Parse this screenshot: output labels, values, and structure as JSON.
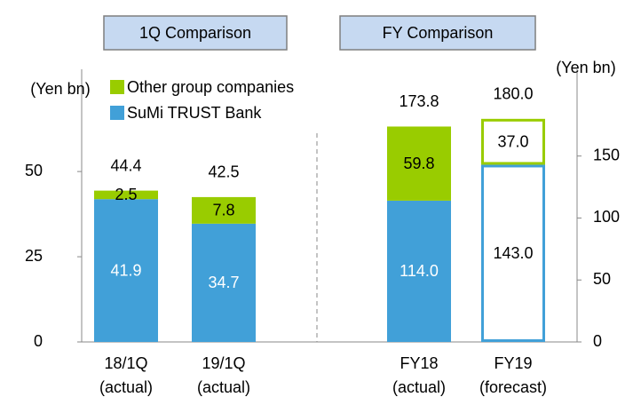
{
  "chart_data": [
    {
      "type": "stacked-bar",
      "title": "1Q Comparison",
      "ylabel": "(Yen bn)",
      "categories": [
        [
          "18/1Q",
          "(actual)"
        ],
        [
          "19/1Q",
          "(actual)"
        ]
      ],
      "series": [
        {
          "name": "SuMi TRUST Bank",
          "color": "#41a0d8",
          "values": [
            41.9,
            34.7
          ]
        },
        {
          "name": "Other group companies",
          "color": "#99cc00",
          "values": [
            2.5,
            7.8
          ]
        }
      ],
      "totals": [
        44.4,
        42.5
      ],
      "ylim": [
        0,
        80
      ],
      "yticks": [
        0,
        25,
        50
      ],
      "legend": true,
      "hollow": [
        false,
        false
      ]
    },
    {
      "type": "stacked-bar",
      "title": "FY Comparison",
      "ylabel": "(Yen bn)",
      "categories": [
        [
          "FY18",
          "(actual)"
        ],
        [
          "FY19",
          "(forecast)"
        ]
      ],
      "series": [
        {
          "color": "#41a0d8",
          "axis": "y2",
          "values": [
            114.0,
            143.0
          ],
          "value_labels": [
            "114.0",
            "143.0"
          ]
        },
        {
          "color": "#99cc00",
          "axis": "y2",
          "values": [
            59.8,
            37.0
          ],
          "value_labels": [
            "59.8",
            "37.0"
          ]
        }
      ],
      "totals": [
        173.8,
        180.0
      ],
      "total_labels": [
        "173.8",
        "180.0"
      ],
      "y2lim": [
        0,
        220
      ],
      "y2ticks": [
        0,
        50,
        100,
        150
      ],
      "hollow": [
        false,
        true
      ]
    }
  ]
}
